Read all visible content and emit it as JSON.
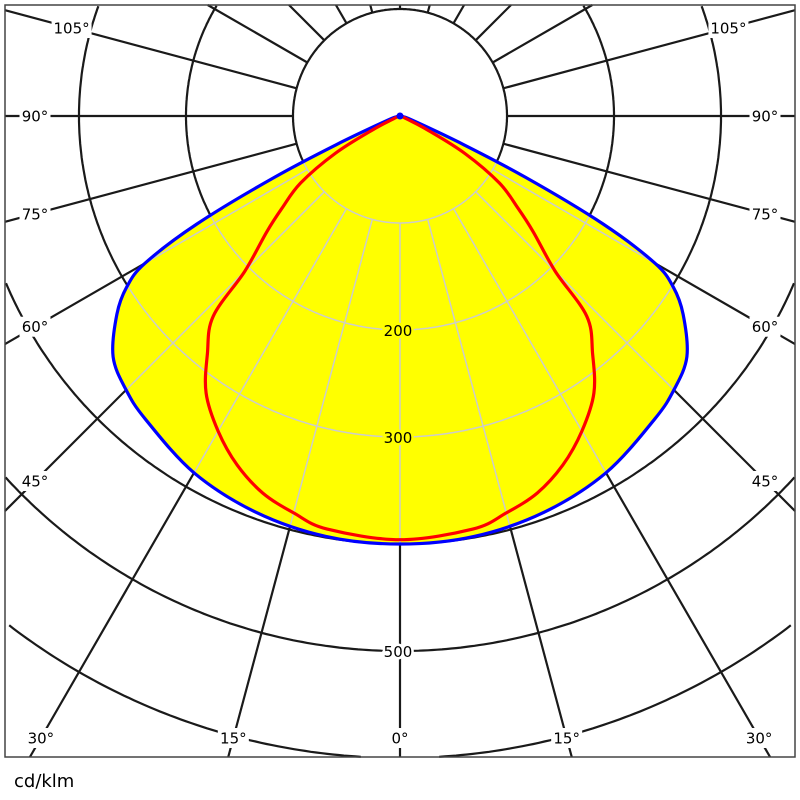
{
  "chart_data": {
    "type": "polar",
    "unit_label": "cd/klm",
    "symmetric": true,
    "angle_unit": "degrees",
    "radial_max": 700,
    "radial_grid": [
      100,
      200,
      300,
      400,
      500,
      600,
      700
    ],
    "radial_tick_labels": [
      {
        "value": 200,
        "text": "200"
      },
      {
        "value": 300,
        "text": "300"
      },
      {
        "value": 500,
        "text": "500"
      }
    ],
    "angle_grid_step": 15,
    "angle_tick_labels": [
      {
        "angle": -105,
        "text": "105°"
      },
      {
        "angle": -90,
        "text": "90°"
      },
      {
        "angle": -75,
        "text": "75°"
      },
      {
        "angle": -60,
        "text": "60°"
      },
      {
        "angle": -45,
        "text": "45°"
      },
      {
        "angle": -30,
        "text": "30°"
      },
      {
        "angle": -15,
        "text": "15°"
      },
      {
        "angle": 0,
        "text": "0°"
      },
      {
        "angle": 15,
        "text": "15°"
      },
      {
        "angle": 30,
        "text": "30°"
      },
      {
        "angle": 45,
        "text": "45°"
      },
      {
        "angle": 60,
        "text": "60°"
      },
      {
        "angle": 75,
        "text": "75°"
      },
      {
        "angle": 90,
        "text": "90°"
      },
      {
        "angle": 105,
        "text": "105°"
      }
    ],
    "fill_color": "#ffff00",
    "series": [
      {
        "color": "#0000ff",
        "angles": [
          0,
          10,
          20,
          30,
          40,
          45,
          50,
          55,
          58,
          60,
          62,
          64,
          66,
          70,
          80,
          90
        ],
        "values": [
          400,
          399,
          394,
          385,
          370,
          362,
          350,
          323,
          301,
          275,
          215,
          130,
          60,
          15,
          3,
          0
        ]
      },
      {
        "color": "#ff0000",
        "angles": [
          0,
          10,
          15,
          20,
          25,
          30,
          35,
          39,
          43,
          45,
          49,
          52,
          56,
          60,
          63,
          66,
          70,
          90
        ],
        "values": [
          396,
          392,
          384,
          375,
          360,
          340,
          316,
          286,
          256,
          205,
          165,
          140,
          112,
          70,
          30,
          8,
          2,
          0
        ]
      }
    ]
  }
}
